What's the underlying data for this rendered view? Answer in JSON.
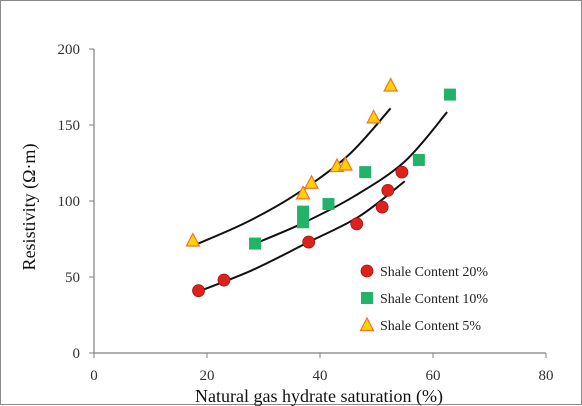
{
  "chart_data": {
    "type": "scatter",
    "xlabel": "Natural gas hydrate saturation (%)",
    "ylabel": "Resistivity (Ω·m)",
    "xlim": [
      0,
      80
    ],
    "ylim": [
      0,
      200
    ],
    "xticks": [
      0,
      20,
      40,
      60,
      80
    ],
    "yticks": [
      0,
      50,
      100,
      150,
      200
    ],
    "grid": false,
    "legend_position": "bottom-right",
    "series": [
      {
        "name": "Shale Content 20%",
        "marker": "circle",
        "color": "#e0201b",
        "points": [
          [
            18.5,
            41
          ],
          [
            23,
            48
          ],
          [
            38,
            73
          ],
          [
            46.5,
            85
          ],
          [
            51,
            96
          ],
          [
            52,
            107
          ],
          [
            54.5,
            119
          ]
        ],
        "trend": {
          "x_range": [
            18.5,
            55
          ],
          "y_at": [
            40.5,
            54.5,
            73,
            90,
            113
          ],
          "x_at": [
            18.5,
            28,
            38,
            47,
            55
          ]
        }
      },
      {
        "name": "Shale Content 10%",
        "marker": "square",
        "color": "#22b26a",
        "points": [
          [
            28.5,
            72
          ],
          [
            37,
            86
          ],
          [
            37,
            93
          ],
          [
            41.5,
            98
          ],
          [
            48,
            119
          ],
          [
            57.5,
            127
          ],
          [
            63,
            170
          ]
        ],
        "trend": {
          "x_range": [
            28.5,
            62.5
          ],
          "y_at": [
            72,
            85.5,
            103,
            126,
            158.5
          ],
          "x_at": [
            28.5,
            37,
            46,
            55,
            62.5
          ]
        }
      },
      {
        "name": "Shale Content 5%",
        "marker": "triangle",
        "color": "#ffd200",
        "stroke": "#f0732a",
        "points": [
          [
            17.5,
            74
          ],
          [
            37,
            105
          ],
          [
            38.5,
            112
          ],
          [
            43,
            123
          ],
          [
            44.5,
            124
          ],
          [
            49.5,
            155
          ],
          [
            52.5,
            176
          ]
        ],
        "trend": {
          "x_range": [
            17.5,
            52.5
          ],
          "y_at": [
            70.5,
            86,
            105,
            130,
            161
          ],
          "x_at": [
            17.5,
            27,
            36,
            45,
            52.5
          ]
        }
      }
    ]
  }
}
